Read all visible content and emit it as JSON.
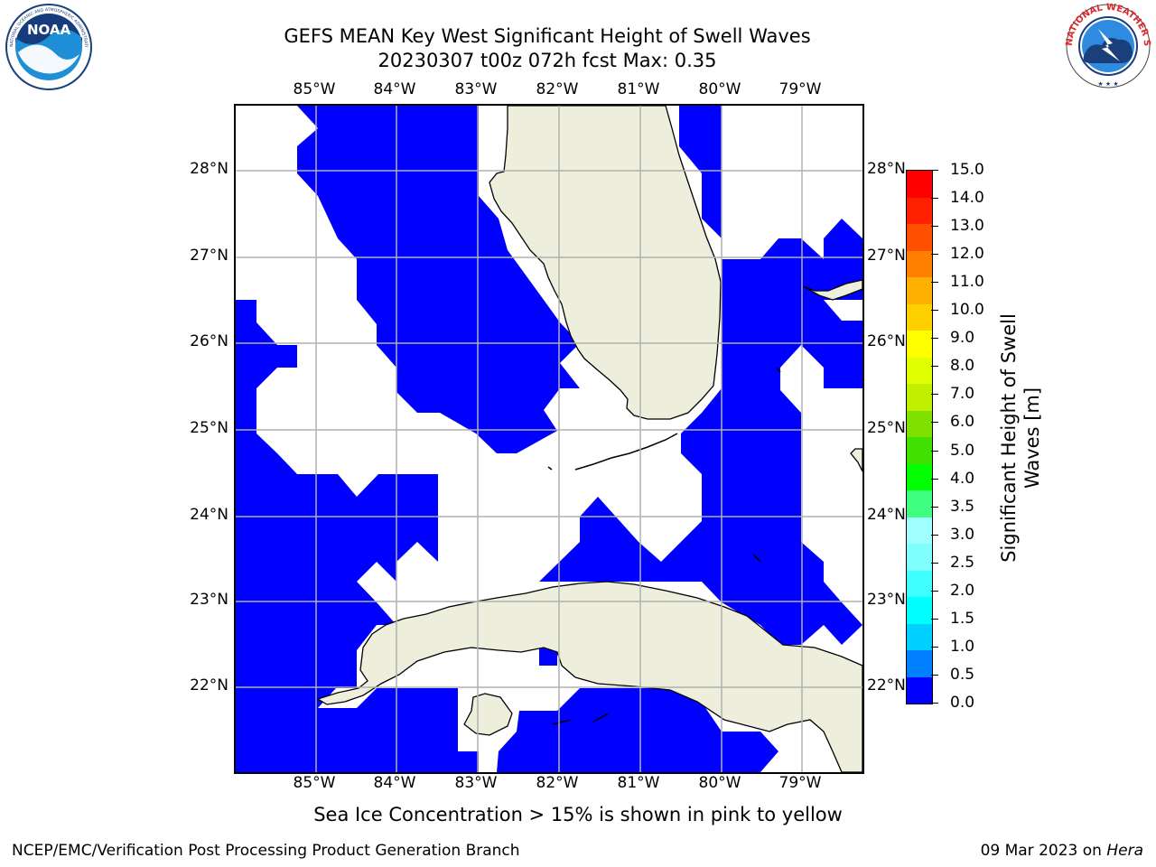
{
  "header": {
    "title_line1": "GEFS MEAN Key West Significant Height of Swell Waves",
    "title_line2": "20230307 t00z 072h fcst   Max: 0.35"
  },
  "logos": {
    "left": {
      "name": "NOAA",
      "text": "NOAA",
      "ring_text": "NATIONAL OCEANIC AND ATMOSPHERIC ADMINISTRATION · U.S. DEPARTMENT OF COMMERCE"
    },
    "right": {
      "name": "National Weather Service",
      "ring_text": "NATIONAL WEATHER SERVICE"
    }
  },
  "map": {
    "lon_labels": [
      "85°W",
      "84°W",
      "83°W",
      "82°W",
      "81°W",
      "80°W",
      "79°W"
    ],
    "lat_labels": [
      "28°N",
      "27°N",
      "26°N",
      "25°N",
      "24°N",
      "23°N",
      "22°N"
    ],
    "extent": {
      "lon_min": "86°W",
      "lon_max": "78.3°W",
      "lat_min": "21°N",
      "lat_max": "28.8°N"
    },
    "colors": {
      "swell_min": "#0000ff",
      "land": "#eeeedd",
      "no_data": "#ffffff",
      "grid": "#b0b0b0",
      "coast": "#000000"
    }
  },
  "colorbar": {
    "title": "Significant Height of Swell\nWaves [m]",
    "levels": [
      "0.0",
      "0.5",
      "1.0",
      "1.5",
      "2.0",
      "2.5",
      "3.0",
      "3.5",
      "4.0",
      "5.0",
      "6.0",
      "7.0",
      "8.0",
      "9.0",
      "10.0",
      "11.0",
      "12.0",
      "13.0",
      "14.0",
      "15.0"
    ],
    "segment_colors": [
      "#0000ff",
      "#0080ff",
      "#00d0ff",
      "#00ffff",
      "#40ffff",
      "#80ffff",
      "#a0ffff",
      "#40ff80",
      "#00ff00",
      "#40e000",
      "#80e000",
      "#c0f000",
      "#e0ff00",
      "#ffff00",
      "#ffd000",
      "#ffb000",
      "#ff8000",
      "#ff5000",
      "#ff2000",
      "#ff0000"
    ]
  },
  "footer": {
    "note": "Sea Ice Concentration > 15% is shown in pink to yellow",
    "producer": "NCEP/EMC/Verification Post Processing Product Generation Branch",
    "date": "09 Mar 2023",
    "on_word": "on",
    "machine": "Hera"
  }
}
